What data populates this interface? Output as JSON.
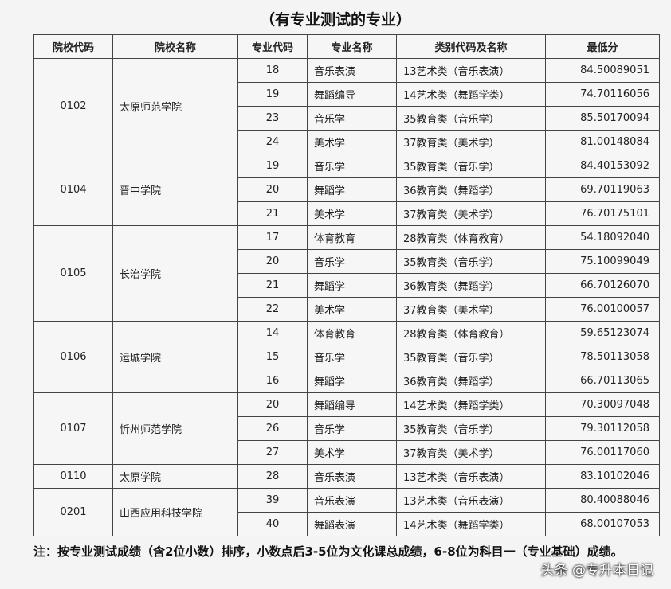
{
  "title": "（有专业测试的专业）",
  "headers": [
    "院校代码",
    "院校名称",
    "专业代码",
    "专业名称",
    "类别代码及名称",
    "最低分"
  ],
  "groups": [
    {
      "code": "0102",
      "name": "太原师范学院",
      "rows": [
        [
          "18",
          "音乐表演",
          "13艺术类（音乐表演）",
          "84.50089051"
        ],
        [
          "19",
          "舞蹈编导",
          "14艺术类（舞蹈学类）",
          "74.70116056"
        ],
        [
          "23",
          "音乐学",
          "35教育类（音乐学）",
          "85.50170094"
        ],
        [
          "24",
          "美术学",
          "37教育类（美术学）",
          "81.00148084"
        ]
      ]
    },
    {
      "code": "0104",
      "name": "晋中学院",
      "rows": [
        [
          "19",
          "音乐学",
          "35教育类（音乐学）",
          "84.40153092"
        ],
        [
          "20",
          "舞蹈学",
          "36教育类（舞蹈学）",
          "69.70119063"
        ],
        [
          "21",
          "美术学",
          "37教育类（美术学）",
          "76.70175101"
        ]
      ]
    },
    {
      "code": "0105",
      "name": "长治学院",
      "rows": [
        [
          "17",
          "体育教育",
          "28教育类（体育教育）",
          "54.18092040"
        ],
        [
          "20",
          "音乐学",
          "35教育类（音乐学）",
          "75.10099049"
        ],
        [
          "21",
          "舞蹈学",
          "36教育类（舞蹈学）",
          "66.70126070"
        ],
        [
          "22",
          "美术学",
          "37教育类（美术学）",
          "76.00100057"
        ]
      ]
    },
    {
      "code": "0106",
      "name": "运城学院",
      "rows": [
        [
          "14",
          "体育教育",
          "28教育类（体育教育）",
          "59.65123074"
        ],
        [
          "15",
          "音乐学",
          "35教育类（音乐学）",
          "78.50113058"
        ],
        [
          "16",
          "舞蹈学",
          "36教育类（舞蹈学）",
          "66.70113065"
        ]
      ]
    },
    {
      "code": "0107",
      "name": "忻州师范学院",
      "rows": [
        [
          "20",
          "舞蹈编导",
          "14艺术类（舞蹈学类）",
          "70.30097048"
        ],
        [
          "26",
          "音乐学",
          "35教育类（音乐学）",
          "79.30112058"
        ],
        [
          "27",
          "美术学",
          "37教育类（美术学）",
          "76.00117060"
        ]
      ]
    },
    {
      "code": "0110",
      "name": "太原学院",
      "rows": [
        [
          "28",
          "音乐表演",
          "13艺术类（音乐表演）",
          "83.10102046"
        ]
      ]
    },
    {
      "code": "0201",
      "name": "山西应用科技学院",
      "rows": [
        [
          "39",
          "音乐表演",
          "13艺术类（音乐表演）",
          "80.40088046"
        ],
        [
          "40",
          "舞蹈表演",
          "14艺术类（舞蹈学类）",
          "68.00107053"
        ]
      ]
    }
  ],
  "note": "注：按专业测试成绩（含2位小数）排序，小数点后3-5位为文化课总成绩，6-8位为科目一（专业基础）成绩。",
  "watermark": "头条 @专升本日记"
}
